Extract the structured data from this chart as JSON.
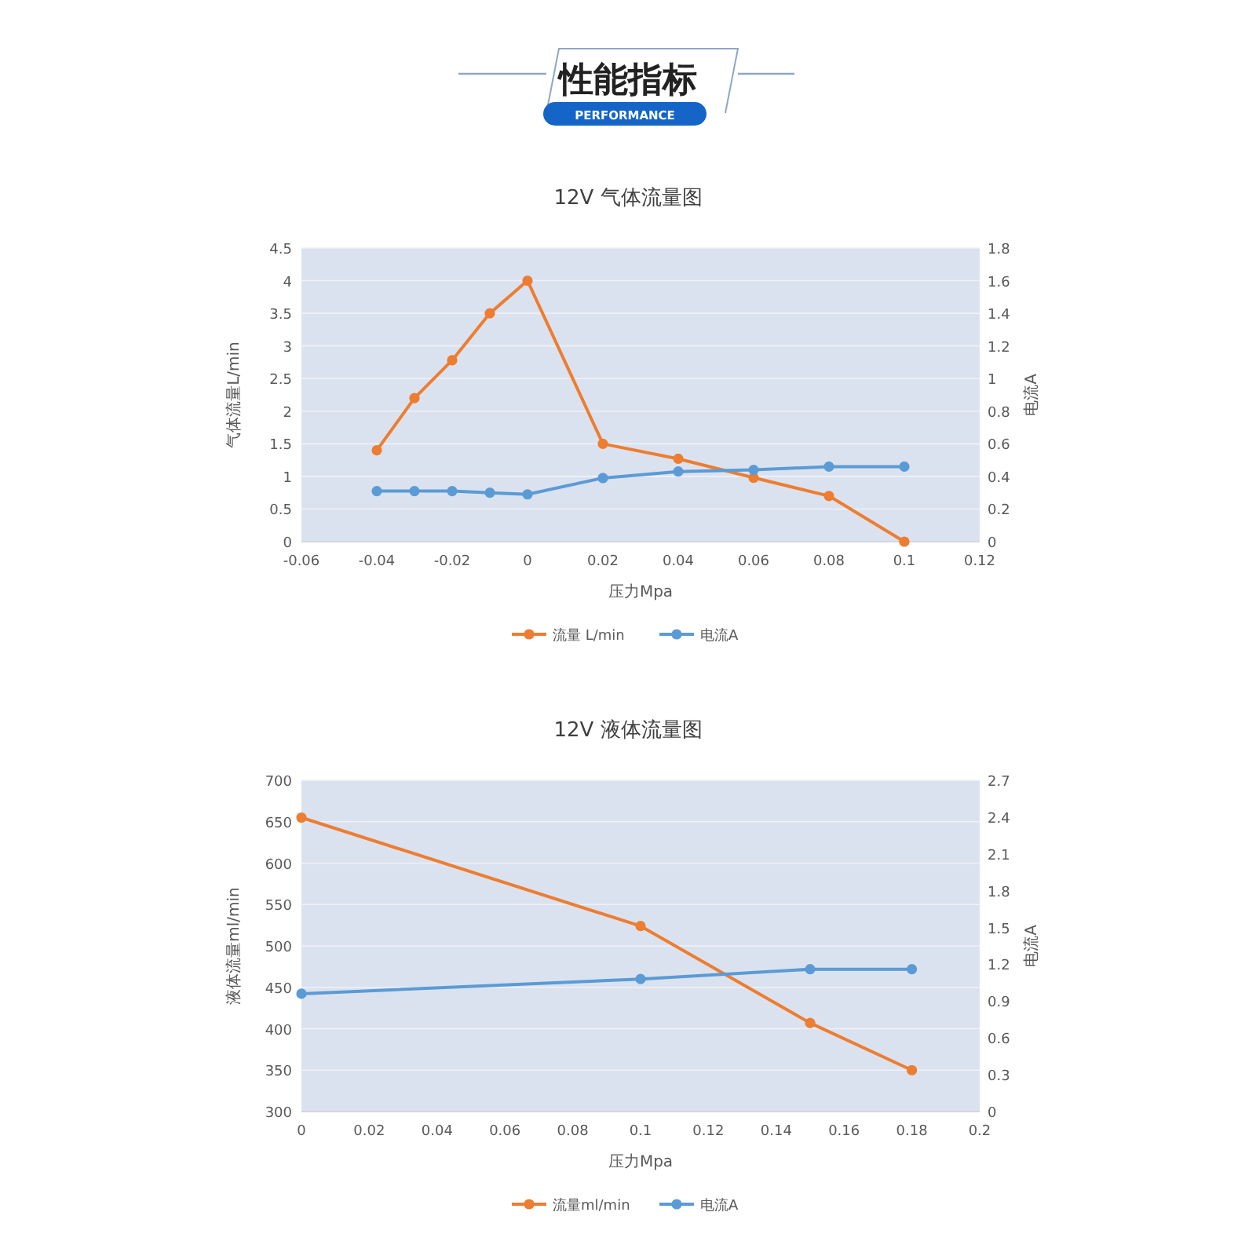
{
  "chart_data": [
    {
      "type": "other",
      "title": "性能指标",
      "subtitle": "PERFORMANCE"
    },
    {
      "type": "line",
      "title": "12V 气体流量图",
      "xlabel": "压力Mpa",
      "ylabel": "气体流量L/min",
      "y2label": "电流A",
      "xlim": [
        -0.06,
        0.12
      ],
      "xticks": [
        -0.06,
        -0.04,
        -0.02,
        0,
        0.02,
        0.04,
        0.06,
        0.08,
        0.1,
        0.12
      ],
      "ylim": [
        0,
        4.5
      ],
      "yticks": [
        0,
        0.5,
        1,
        1.5,
        2,
        2.5,
        3,
        3.5,
        4,
        4.5
      ],
      "y2lim": [
        0,
        1.8
      ],
      "y2ticks": [
        0,
        0.2,
        0.4,
        0.6,
        0.8,
        1,
        1.2,
        1.4,
        1.6,
        1.8
      ],
      "grid": "y",
      "legend": "bottom",
      "marker": "circle",
      "series": [
        {
          "name": "流量 L/min",
          "color": "#ed7d31",
          "x": [
            -0.04,
            -0.03,
            -0.02,
            -0.01,
            0,
            0.02,
            0.04,
            0.06,
            0.08,
            0.1
          ],
          "values": [
            1.4,
            2.2,
            2.78,
            3.5,
            4.0,
            1.5,
            1.27,
            0.98,
            0.7,
            0
          ]
        },
        {
          "name": "电流A",
          "color": "#5b9bd5",
          "axis": "y2",
          "x": [
            -0.04,
            -0.03,
            -0.02,
            -0.01,
            0,
            0.02,
            0.04,
            0.06,
            0.08,
            0.1
          ],
          "values": [
            0.31,
            0.31,
            0.31,
            0.3,
            0.29,
            0.39,
            0.43,
            0.44,
            0.46,
            0.46
          ]
        }
      ]
    },
    {
      "type": "line",
      "title": "12V 液体流量图",
      "xlabel": "压力Mpa",
      "ylabel": "液体流量ml/min",
      "y2label": "电流A",
      "xlim": [
        0,
        0.2
      ],
      "xticks": [
        0,
        0.02,
        0.04,
        0.06,
        0.08,
        0.1,
        0.12,
        0.14,
        0.16,
        0.18,
        0.2
      ],
      "ylim": [
        300,
        700
      ],
      "yticks": [
        300,
        350,
        400,
        450,
        500,
        550,
        600,
        650,
        700
      ],
      "y2lim": [
        0,
        2.7
      ],
      "y2ticks": [
        0,
        0.3,
        0.6,
        0.9,
        1.2,
        1.5,
        1.8,
        2.1,
        2.4,
        2.7
      ],
      "grid": "y",
      "legend": "bottom",
      "marker": "circle",
      "series": [
        {
          "name": "流量ml/min",
          "color": "#ed7d31",
          "x": [
            0,
            0.1,
            0.15,
            0.18
          ],
          "values": [
            655,
            524,
            407,
            350
          ]
        },
        {
          "name": "电流A",
          "color": "#5b9bd5",
          "axis": "y2",
          "x": [
            0,
            0.1,
            0.15,
            0.18
          ],
          "values": [
            0.96,
            1.08,
            1.16,
            1.16
          ]
        }
      ]
    }
  ]
}
